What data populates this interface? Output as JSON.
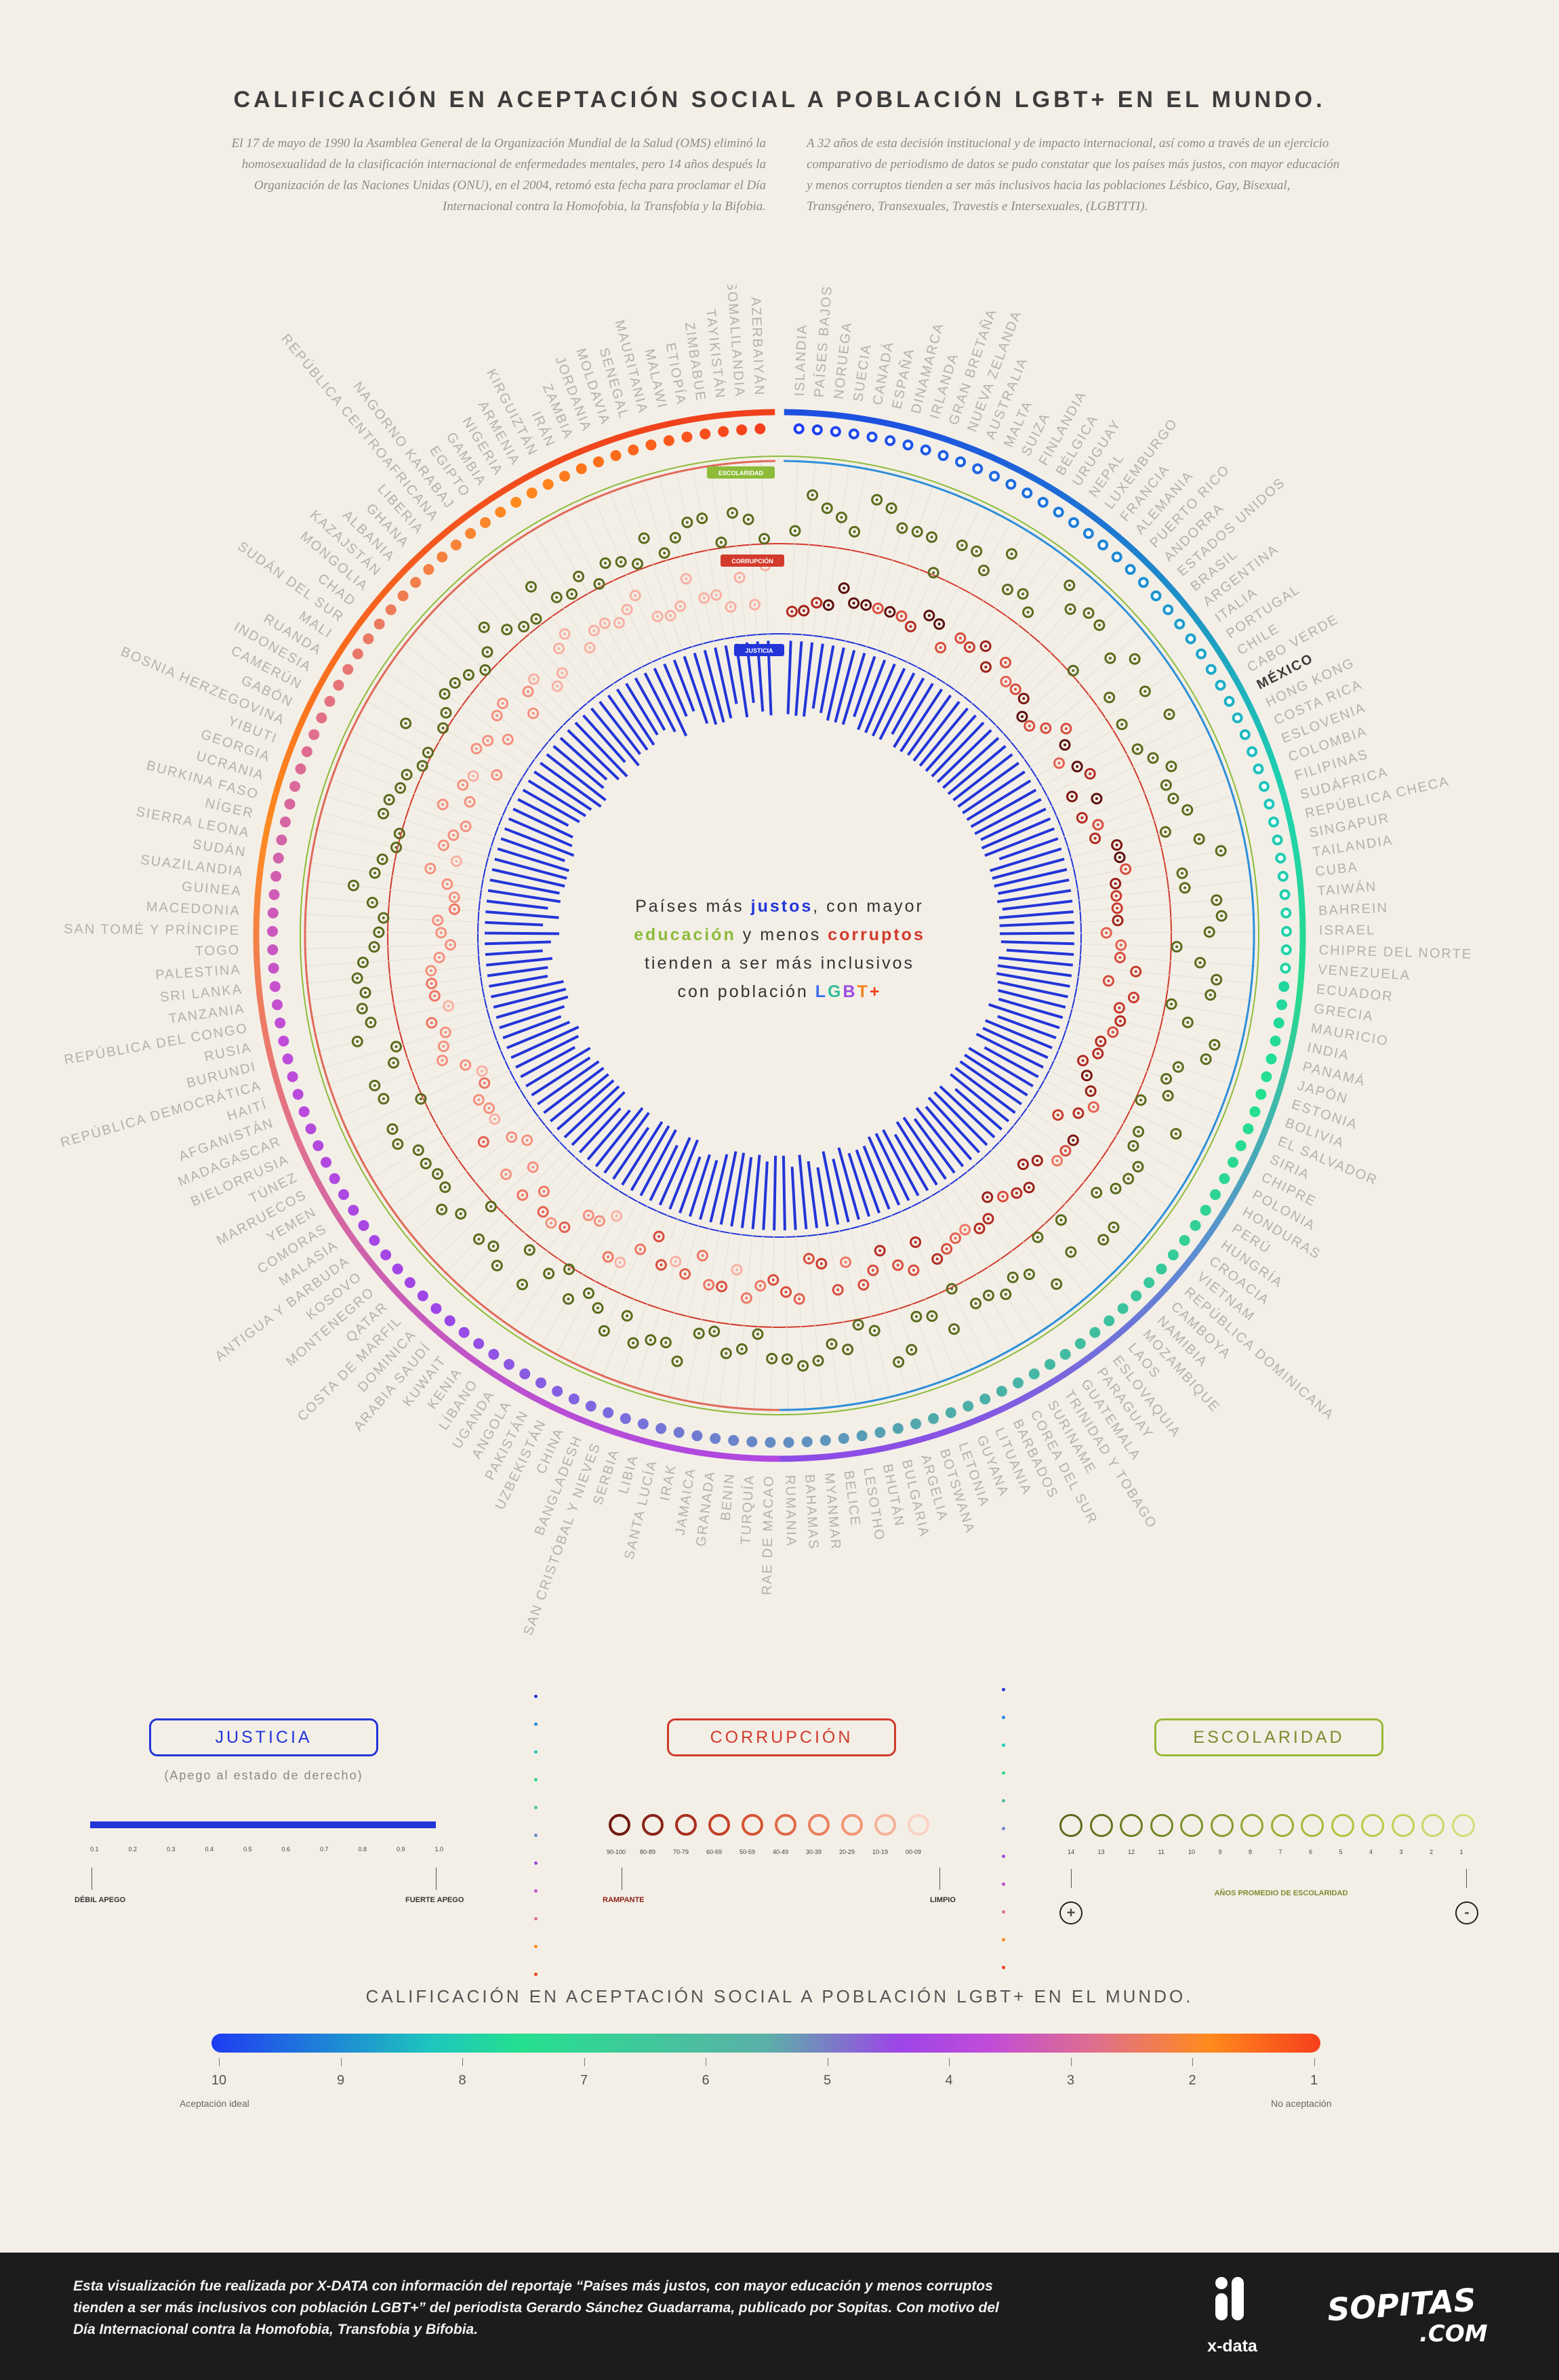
{
  "title": "CALIFICACIÓN EN ACEPTACIÓN SOCIAL A POBLACIÓN LGBT+ EN EL MUNDO.",
  "intro_left": "El 17 de mayo de 1990 la Asamblea General de la Organización Mundial de la Salud (OMS) eliminó la homosexualidad de la clasificación internacional de enfermedades mentales, pero 14 años después la Organización de las Naciones Unidas (ONU), en el 2004, retomó esta fecha para proclamar el Día Internacional contra la Homofobia, la Transfobia y la Bifobia.",
  "intro_right": "A 32 años de esta decisión institucional y de impacto internacional, así como a través de un ejercicio comparativo de periodismo de datos se pudo constatar que los países más justos, con mayor educación y menos corruptos tienden a ser más inclusivos hacia las poblaciones Lésbico, Gay, Bisexual, Transgénero, Transexuales, Travestis e Intersexuales, (LGBTTTI).",
  "center": {
    "line1_a": "Países más ",
    "line1_b": "justos",
    "line1_c": ", con mayor",
    "line2_a": "educación",
    "line2_b": " y menos ",
    "line2_c": "corruptos",
    "line3": "tienden a ser más inclusivos",
    "line4_a": "con población ",
    "line4_L": "L",
    "line4_G": "G",
    "line4_B": "B",
    "line4_T": "T",
    "line4_plus": "+"
  },
  "ring_tags": {
    "escolaridad": "ESCOLARIDAD",
    "corrupcion": "CORRUPCIÓN",
    "justicia": "JUSTICIA"
  },
  "colors": {
    "justicia": "#2335d8",
    "corrupcion": "#d23a2c",
    "escolaridad": "#8dbb3a",
    "educacion_text": "#8dbb3a"
  },
  "chart_data": {
    "type": "radial",
    "title": "CALIFICACIÓN EN ACEPTACIÓN SOCIAL A POBLACIÓN LGBT+ EN EL MUNDO.",
    "highlight": "MÉXICO",
    "countries": [
      "ISLANDIA",
      "PAÍSES BAJOS",
      "NORUEGA",
      "SUECIA",
      "CANADÁ",
      "ESPAÑA",
      "DINAMARCA",
      "IRLANDA",
      "GRAN BRETAÑA",
      "NUEVA ZELANDA",
      "AUSTRALIA",
      "MALTA",
      "SUIZA",
      "FINLANDIA",
      "BÉLGICA",
      "URUGUAY",
      "NEPAL",
      "LUXEMBURGO",
      "FRANCIA",
      "ALEMANIA",
      "PUERTO RICO",
      "ANDORRA",
      "ESTADOS UNIDOS",
      "BRASIL",
      "ARGENTINA",
      "ITALIA",
      "PORTUGAL",
      "CHILE",
      "CABO VERDE",
      "MÉXICO",
      "HONG KONG",
      "COSTA RICA",
      "ESLOVENIA",
      "COLOMBIA",
      "FILIPINAS",
      "SUDÁFRICA",
      "REPÚBLICA CHECA",
      "SINGAPUR",
      "TAILANDIA",
      "CUBA",
      "TAIWÁN",
      "BAHREIN",
      "ISRAEL",
      "CHIPRE DEL NORTE",
      "VENEZUELA",
      "ECUADOR",
      "GRECIA",
      "MAURICIO",
      "INDIA",
      "PANAMÁ",
      "JAPÓN",
      "ESTONIA",
      "BOLIVIA",
      "EL SALVADOR",
      "SIRIA",
      "CHIPRE",
      "POLONIA",
      "HONDURAS",
      "PERÚ",
      "HUNGRÍA",
      "CROACIA",
      "VIETNAM",
      "REPÚBLICA DOMINICANA",
      "CAMBOYA",
      "NAMIBIA",
      "MOZAMBIQUE",
      "LAOS",
      "ESLOVAQUIA",
      "PARAGUAY",
      "GUATEMALA",
      "TRINIDAD Y TOBAGO",
      "SURINAME",
      "COREA DEL SUR",
      "BARBADOS",
      "LITUANIA",
      "GUYANA",
      "LETONIA",
      "BOTSWANA",
      "ARGELIA",
      "BULGARIA",
      "BHUTÁN",
      "LESOTHO",
      "BELICE",
      "MYANMAR",
      "BAHAMAS",
      "RUMANIA",
      "RAE DE MACAO",
      "TURQUÍA",
      "BENIN",
      "GRANADA",
      "JAMAICA",
      "IRAK",
      "SANTA LUCÍA",
      "LIBIA",
      "SERBIA",
      "SAN CRISTÓBAL Y NIEVES",
      "BANGLADESH",
      "CHINA",
      "UZBEKISTÁN",
      "PAKISTÁN",
      "ANGOLA",
      "UGANDA",
      "LÍBANO",
      "KENIA",
      "KUWAIT",
      "ARABIA SAUDÍ",
      "DOMINICA",
      "COSTA DE MARFIL",
      "QATAR",
      "MONTENEGRO",
      "KOSOVO",
      "ANTIGUA Y BARBUDA",
      "MALASIA",
      "COMORAS",
      "YEMEN",
      "MARRUECOS",
      "TÚNEZ",
      "BIELORRUSIA",
      "MADAGASCAR",
      "AFGANISTÁN",
      "HAITÍ",
      "REPÚBLICA DEMOCRÁTICA",
      "BURUNDI",
      "RUSIA",
      "REPÚBLICA DEL CONGO",
      "TANZANIA",
      "SRI LANKA",
      "PALESTINA",
      "TOGO",
      "SAN TOMÉ Y PRÍNCIPE",
      "MACEDONIA",
      "GUINEA",
      "SUAZILANDIA",
      "SUDÁN",
      "SIERRA LEONA",
      "NÍGER",
      "BURKINA FASO",
      "UCRANIA",
      "GEORGIA",
      "YIBUTI",
      "BOSNIA HERZEGOVINA",
      "GABÓN",
      "CAMERÚN",
      "INDONESIA",
      "RUANDA",
      "MALI",
      "SUDÁN DEL SUR",
      "CHAD",
      "MONGOLIA",
      "KAZAJSTÁN",
      "ALBANIA",
      "GHANA",
      "LIBERIA",
      "REPÚBLICA CENTROAFRICANA",
      "NAGORNO KARABAJ",
      "EGIPTO",
      "GAMBIA",
      "NIGERIA",
      "ARMENIA",
      "KIRGUIZTÁN",
      "IRÁN",
      "ZAMBIA",
      "JORDANIA",
      "MOLDAVIA",
      "SENEGAL",
      "MAURITANIA",
      "MALAWI",
      "ETIOPÍA",
      "ZIMBABUE",
      "TAYIKISTÁN",
      "SOMALILANDIA",
      "AZERBAIYÁN"
    ],
    "acceptance_scale": {
      "min": 1,
      "max": 10,
      "ticks": [
        "10",
        "9",
        "8",
        "7",
        "6",
        "5",
        "4",
        "3",
        "2",
        "1"
      ],
      "min_label": "No aceptación",
      "max_label": "Aceptación ideal"
    },
    "justicia_range": [
      0.1,
      1.0
    ],
    "escolaridad_range_years": [
      1,
      14
    ],
    "corrupcion_bins": [
      "90-100",
      "80-89",
      "70-79",
      "60-69",
      "50-59",
      "40-49",
      "30-39",
      "20-29",
      "10-19",
      "00-09"
    ]
  },
  "legend": {
    "justicia": {
      "label": "JUSTICIA",
      "sub": "(Apego al estado de derecho)",
      "ticks": [
        "0.1",
        "0.2",
        "0.3",
        "0.4",
        "0.5",
        "0.6",
        "0.7",
        "0.8",
        "0.9",
        "1.0"
      ],
      "low": "DÉBIL APEGO",
      "high": "FUERTE APEGO"
    },
    "corrupcion": {
      "label": "CORRUPCIÓN",
      "bins": [
        "90-100",
        "80-89",
        "70-79",
        "60-69",
        "50-59",
        "40-49",
        "30-39",
        "20-29",
        "10-19",
        "00-09"
      ],
      "low": "RAMPANTE",
      "high": "LIMPIO"
    },
    "escolaridad": {
      "label": "ESCOLARIDAD",
      "years": [
        "14",
        "13",
        "12",
        "11",
        "10",
        "9",
        "8",
        "7",
        "6",
        "5",
        "4",
        "3",
        "2",
        "1"
      ],
      "caption": "AÑOS PROMEDIO DE ESCOLARIDAD",
      "plus": "+",
      "minus": "-"
    }
  },
  "scale_title": "CALIFICACIÓN EN ACEPTACIÓN SOCIAL A POBLACIÓN LGBT+ EN EL MUNDO.",
  "scale_ticks": [
    "10",
    "9",
    "8",
    "7",
    "6",
    "5",
    "4",
    "3",
    "2",
    "1"
  ],
  "scale_low": "Aceptación ideal",
  "scale_high": "No aceptación",
  "footer": {
    "text": "Esta visualización fue realizada por X-DATA con información del reportaje “Países más justos, con mayor educación y menos corruptos tienden a ser más inclusivos con población LGBT+” del periodista Gerardo Sánchez Guadarrama, publicado por Sopitas. Con motivo del Día Internacional contra la Homofobia, Transfobia y Bifobia.",
    "xdata": "x-data",
    "sopitas": "SOPITAS",
    "sopitas_com": ".COM"
  }
}
